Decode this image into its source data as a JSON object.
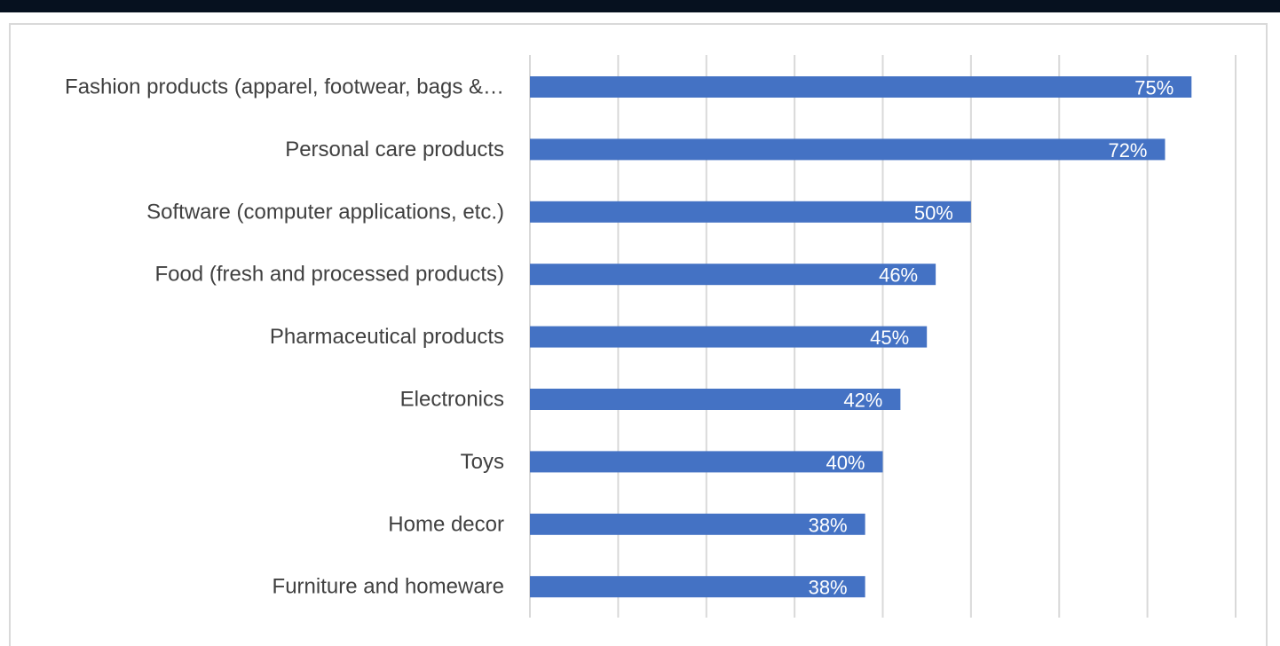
{
  "chart_data": {
    "type": "bar",
    "orientation": "horizontal",
    "title": "",
    "xlabel": "",
    "ylabel": "",
    "xlim": [
      0,
      80
    ],
    "grid": true,
    "categories": [
      "Fashion products (apparel, footwear, bags &…",
      "Personal care products",
      "Software (computer applications, etc.)",
      "Food (fresh and processed products)",
      "Pharmaceutical products",
      "Electronics",
      "Toys",
      "Home decor",
      "Furniture and homeware"
    ],
    "values": [
      75,
      72,
      50,
      46,
      45,
      42,
      40,
      38,
      38
    ],
    "value_labels": [
      "75%",
      "72%",
      "50%",
      "46%",
      "45%",
      "42%",
      "40%",
      "38%",
      "38%"
    ],
    "bar_color": "#4472c4",
    "grid_color": "#d9d9d9",
    "label_color": "#404040"
  }
}
